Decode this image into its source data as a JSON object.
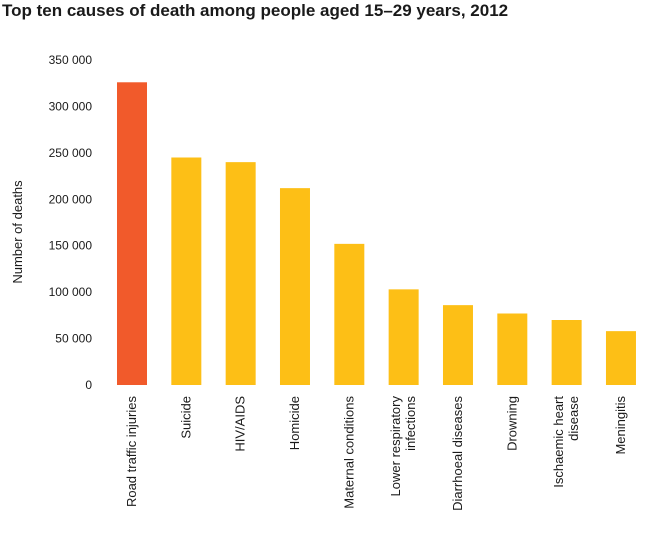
{
  "chart_data": {
    "type": "bar",
    "title": "Top ten causes of death among people aged 15–29 years, 2012",
    "xlabel": "",
    "ylabel": "Number of deaths",
    "ylim": [
      0,
      350000
    ],
    "yticks": [
      0,
      50000,
      100000,
      150000,
      200000,
      250000,
      300000,
      350000
    ],
    "ytick_labels": [
      "0",
      "50 000",
      "100 000",
      "150 000",
      "200 000",
      "250 000",
      "300 000",
      "350 000"
    ],
    "categories": [
      "Road traffic injuries",
      "Suicide",
      "HIV/AIDS",
      "Homicide",
      "Maternal conditions",
      "Lower respiratory infections",
      "Diarrhoeal diseases",
      "Drowning",
      "Ischaemic heart disease",
      "Meningitis"
    ],
    "category_lines": [
      [
        "Road traffic injuries"
      ],
      [
        "Suicide"
      ],
      [
        "HIV/AIDS"
      ],
      [
        "Homicide"
      ],
      [
        "Maternal conditions"
      ],
      [
        "Lower respiratory",
        "infections"
      ],
      [
        "Diarrhoeal diseases"
      ],
      [
        "Drowning"
      ],
      [
        "Ischaemic heart",
        "disease"
      ],
      [
        "Meningitis"
      ]
    ],
    "values": [
      326000,
      245000,
      240000,
      212000,
      152000,
      103000,
      86000,
      77000,
      70000,
      58000
    ],
    "colors": [
      "#f15a2b",
      "#fdbf16",
      "#fdbf16",
      "#fdbf16",
      "#fdbf16",
      "#fdbf16",
      "#fdbf16",
      "#fdbf16",
      "#fdbf16",
      "#fdbf16"
    ],
    "grid": false,
    "legend": "none"
  }
}
